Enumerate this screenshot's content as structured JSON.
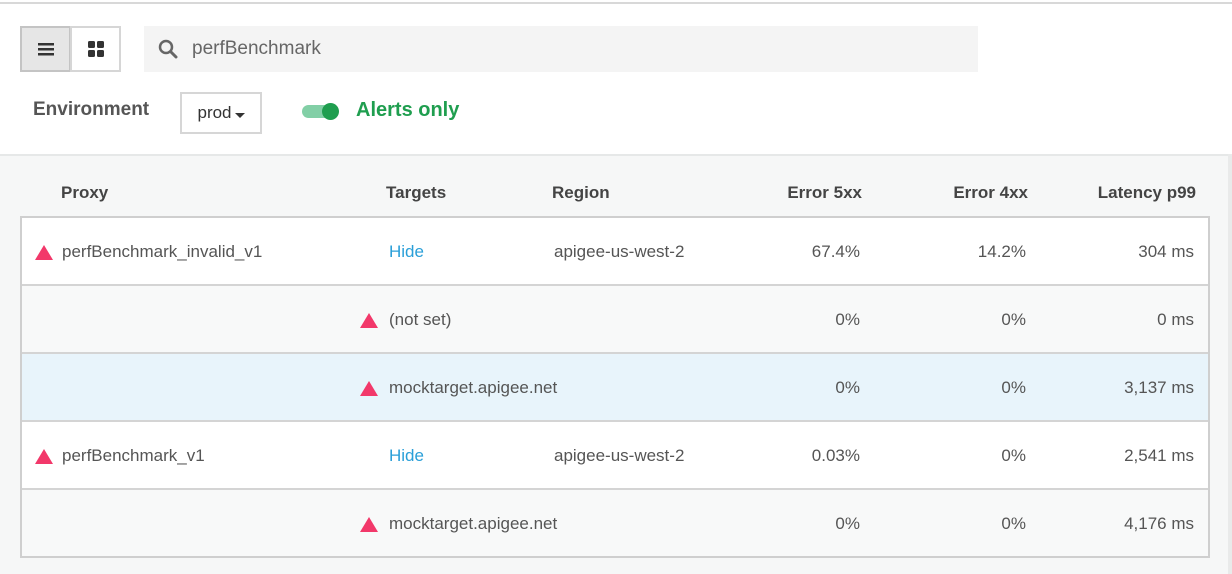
{
  "toolbar": {
    "list_view_icon": "list-icon",
    "grid_view_icon": "grid-icon",
    "search_icon": "search-icon",
    "search_value": "perfBenchmark"
  },
  "filters": {
    "environment_label": "Environment",
    "environment_value": "prod",
    "alerts_only_label": "Alerts only",
    "alerts_only_on": true
  },
  "colors": {
    "alert": "#f2386a",
    "accent_green": "#1f9e4f",
    "link": "#2a9fd8",
    "highlight_row": "#e8f4fb"
  },
  "table": {
    "headers": [
      "Proxy",
      "Targets",
      "Region",
      "Error 5xx",
      "Error 4xx",
      "Latency p99"
    ],
    "rows": [
      {
        "type": "proxy",
        "proxy": "perfBenchmark_invalid_v1",
        "targets": "Hide",
        "region": "apigee-us-west-2",
        "e5": "67.4%",
        "e4": "14.2%",
        "lat": "304 ms"
      },
      {
        "type": "target",
        "target": "(not set)",
        "e5": "0%",
        "e4": "0%",
        "lat": "0 ms"
      },
      {
        "type": "target",
        "target": "mocktarget.apigee.net",
        "e5": "0%",
        "e4": "0%",
        "lat": "3,137 ms",
        "highlighted": true
      },
      {
        "type": "proxy",
        "proxy": "perfBenchmark_v1",
        "targets": "Hide",
        "region": "apigee-us-west-2",
        "e5": "0.03%",
        "e4": "0%",
        "lat": "2,541 ms"
      },
      {
        "type": "target",
        "target": "mocktarget.apigee.net",
        "e5": "0%",
        "e4": "0%",
        "lat": "4,176 ms"
      }
    ]
  }
}
